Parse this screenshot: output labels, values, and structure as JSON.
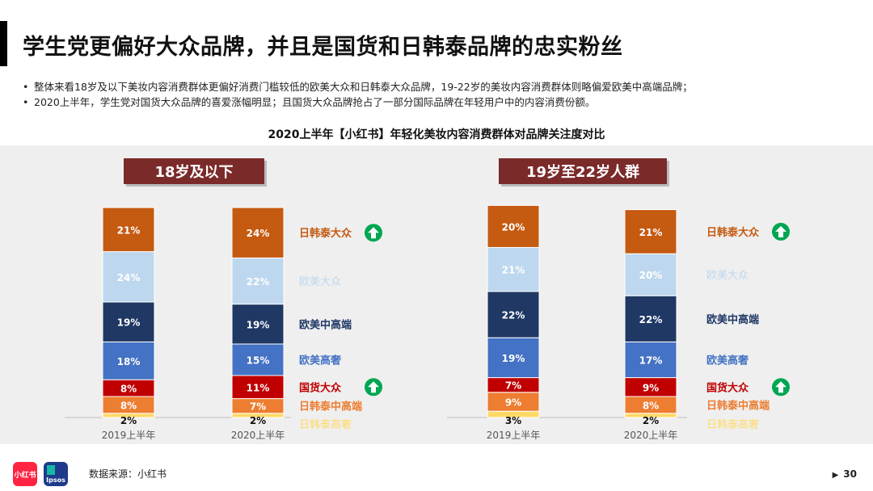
{
  "title": "学生党更偏好大众品牌，并且是国货和日韩泰品牌的忠实粉丝",
  "bullets": [
    "整体来看18岁及以下美妆内容消费群体更偏好消费门槛较低的欧美大众和日韩泰大众品牌，19-22岁的美妆内容消费群体则略偏爱欧美中高端品牌；",
    "2020上半年，学生党对国货大众品牌的喜爱涨幅明显；且国货大众品牌抢占了一部分国际品牌在年轻用户中的内容消费份额。"
  ],
  "source": "数据来源：小红书",
  "page_number": "30",
  "logos": {
    "xhs": "小红书",
    "ipsos": "Ipsos"
  },
  "colors": {
    "日韩泰大众": "#c55a11",
    "欧美大众": "#bdd7ee",
    "欧美中高端": "#1f3864",
    "欧美高奢": "#4472c4",
    "国货大众": "#c00000",
    "日韩泰中高端": "#ed7d31",
    "日韩泰高奢": "#ffd966",
    "panel_label_bg": "#7b2a2a",
    "up_arrow": "#00a651"
  },
  "chart_data": [
    {
      "type": "bar",
      "stacked": true,
      "title": "2020上半年【小红书】年轻化美妆内容消费群体对品牌关注度对比",
      "panel": "18岁及以下",
      "categories": [
        "2019上半年",
        "2020上半年"
      ],
      "series": [
        {
          "name": "日韩泰高奢",
          "values": [
            2,
            2
          ]
        },
        {
          "name": "日韩泰中高端",
          "values": [
            8,
            7
          ]
        },
        {
          "name": "国货大众",
          "values": [
            8,
            11
          ],
          "trend": "up"
        },
        {
          "name": "欧美高奢",
          "values": [
            18,
            15
          ]
        },
        {
          "name": "欧美中高端",
          "values": [
            19,
            19
          ]
        },
        {
          "name": "欧美大众",
          "values": [
            24,
            22
          ]
        },
        {
          "name": "日韩泰大众",
          "values": [
            21,
            24
          ],
          "trend": "up"
        }
      ],
      "value_suffix": "%"
    },
    {
      "type": "bar",
      "stacked": true,
      "panel": "19岁至22岁人群",
      "categories": [
        "2019上半年",
        "2020上半年"
      ],
      "series": [
        {
          "name": "日韩泰高奢",
          "values": [
            3,
            2
          ]
        },
        {
          "name": "日韩泰中高端",
          "values": [
            9,
            8
          ]
        },
        {
          "name": "国货大众",
          "values": [
            7,
            9
          ],
          "trend": "up"
        },
        {
          "name": "欧美高奢",
          "values": [
            19,
            17
          ]
        },
        {
          "name": "欧美中高端",
          "values": [
            22,
            22
          ]
        },
        {
          "name": "欧美大众",
          "values": [
            21,
            20
          ]
        },
        {
          "name": "日韩泰大众",
          "values": [
            20,
            21
          ],
          "trend": "up"
        }
      ],
      "value_suffix": "%"
    }
  ]
}
